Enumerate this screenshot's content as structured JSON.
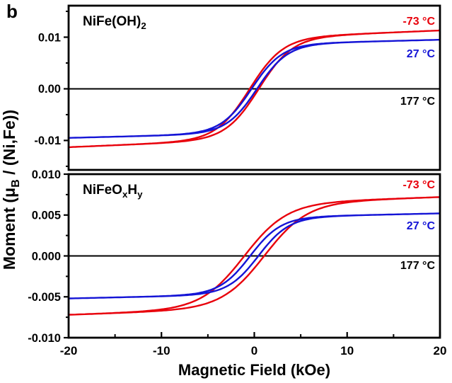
{
  "figure": {
    "panel_letter": "b",
    "background_color": "#ffffff",
    "axis_color": "#000000",
    "ylabel_segments": [
      {
        "t": "Moment ("
      },
      {
        "t": "μ"
      },
      {
        "t": "B",
        "sub": true
      },
      {
        "t": " / (Ni,Fe))"
      }
    ]
  },
  "chart_data": {
    "type": "line",
    "subtype": "magnetic-hysteresis-loops",
    "xlabel": "Magnetic Field (kOe)",
    "ylabel": "Moment (μB / (Ni,Fe))",
    "xlim": [
      -20,
      20
    ],
    "xticks": [
      {
        "v": -20,
        "label": "-20"
      },
      {
        "v": -10,
        "label": "-10"
      },
      {
        "v": 0,
        "label": "0"
      },
      {
        "v": 10,
        "label": "10"
      },
      {
        "v": 20,
        "label": "20"
      }
    ],
    "xminor": [
      -15,
      -5,
      5,
      15
    ],
    "grid": false,
    "legend_position": "inline-right-labels",
    "temperatures_C": [
      -73,
      27,
      177
    ],
    "colors": {
      "red": "#e8000b",
      "blue": "#1414d6",
      "black": "#000000"
    },
    "panels": [
      {
        "name": "NiFe(OH)2",
        "title_segments": [
          {
            "t": "NiFe(OH)"
          },
          {
            "t": "2",
            "sub": true
          }
        ],
        "ylim": [
          -0.0157,
          0.0161
        ],
        "yticks": [
          {
            "v": 0.01,
            "label": "0.01"
          },
          {
            "v": 0.0,
            "label": "0.00"
          },
          {
            "v": -0.01,
            "label": "-0.01"
          }
        ],
        "yminor": [
          0.015,
          0.005,
          -0.005,
          -0.015
        ],
        "show_xtick_labels": false,
        "series": [
          {
            "name": "-73 °C",
            "color": "#e8000b",
            "z": 1,
            "Ms": 0.0098,
            "Hc": 0.5,
            "w": 3.6,
            "chi": 7.5e-05,
            "moment_at_20kOe": 0.0113,
            "coercive_field_kOe": 0.5,
            "ascending_branch_points": [
              [
                -20,
                -0.0113
              ],
              [
                -10,
                -0.0105
              ],
              [
                -5,
                -0.0093
              ],
              [
                -2,
                -0.006
              ],
              [
                0,
                -0.0014
              ],
              [
                2,
                0.004
              ],
              [
                5,
                0.0087
              ],
              [
                10,
                0.0105
              ],
              [
                20,
                0.0113
              ]
            ],
            "note": "descending branch is mirror: M_desc(H) = -M_asc(-H)"
          },
          {
            "name": "27 °C",
            "color": "#1414d6",
            "z": 2,
            "Ms": 0.0086,
            "Hc": 0.3,
            "w": 3.3,
            "chi": 4.5e-05,
            "moment_at_20kOe": 0.0095,
            "coercive_field_kOe": 0.3,
            "ascending_branch_points": [
              [
                -20,
                -0.0095
              ],
              [
                -10,
                -0.009
              ],
              [
                -5,
                -0.0082
              ],
              [
                -2,
                -0.0053
              ],
              [
                0,
                -0.0008
              ],
              [
                2,
                0.0042
              ],
              [
                5,
                0.0079
              ],
              [
                10,
                0.009
              ],
              [
                20,
                0.0095
              ]
            ],
            "note": "descending branch is mirror: M_desc(H) = -M_asc(-H)"
          },
          {
            "name": "177 °C",
            "color": "#000000",
            "z": 0,
            "Ms": 0.0,
            "Hc": 0.0,
            "w": 1.0,
            "chi": 0.0,
            "moment_at_20kOe": 0.0,
            "coercive_field_kOe": 0.0,
            "ascending_branch_points": [
              [
                -20,
                0.0
              ],
              [
                0,
                0.0
              ],
              [
                20,
                0.0
              ]
            ],
            "note": "flat line coinciding with zero line"
          }
        ]
      },
      {
        "name": "NiFeOxHy",
        "title_segments": [
          {
            "t": "NiFeO"
          },
          {
            "t": "x",
            "sub": true
          },
          {
            "t": "H"
          },
          {
            "t": "y",
            "sub": true
          }
        ],
        "ylim": [
          -0.01,
          0.01
        ],
        "yticks": [
          {
            "v": 0.01,
            "label": "0.010"
          },
          {
            "v": 0.005,
            "label": "0.005"
          },
          {
            "v": 0.0,
            "label": "0.000"
          },
          {
            "v": -0.005,
            "label": "-0.005"
          },
          {
            "v": -0.01,
            "label": "-0.010"
          }
        ],
        "yminor": [
          0.0075,
          0.0025,
          -0.0025,
          -0.0075
        ],
        "show_xtick_labels": true,
        "series": [
          {
            "name": "-73 °C",
            "color": "#e8000b",
            "z": 1,
            "Ms": 0.0064,
            "Hc": 1.1,
            "w": 4.6,
            "chi": 4e-05,
            "moment_at_20kOe": 0.0072,
            "coercive_field_kOe": 1.1,
            "ascending_branch_points": [
              [
                -20,
                -0.0072
              ],
              [
                -10,
                -0.0067
              ],
              [
                -5,
                -0.0058
              ],
              [
                -2,
                -0.0039
              ],
              [
                0,
                -0.0015
              ],
              [
                2,
                0.0013
              ],
              [
                5,
                0.0046
              ],
              [
                10,
                0.0065
              ],
              [
                20,
                0.0072
              ]
            ],
            "note": "descending branch is mirror: M_desc(H) = -M_asc(-H)"
          },
          {
            "name": "27 °C",
            "color": "#1414d6",
            "z": 2,
            "Ms": 0.0047,
            "Hc": 0.45,
            "w": 3.3,
            "chi": 2.5e-05,
            "moment_at_20kOe": 0.0052,
            "coercive_field_kOe": 0.45,
            "ascending_branch_points": [
              [
                -20,
                -0.0052
              ],
              [
                -10,
                -0.0049
              ],
              [
                -5,
                -0.0045
              ],
              [
                -2,
                -0.003
              ],
              [
                0,
                -0.0006
              ],
              [
                2,
                0.0021
              ],
              [
                5,
                0.0043
              ],
              [
                10,
                0.0049
              ],
              [
                20,
                0.0052
              ]
            ],
            "note": "descending branch is mirror: M_desc(H) = -M_asc(-H)"
          },
          {
            "name": "177 °C",
            "color": "#000000",
            "z": 0,
            "Ms": 0.0,
            "Hc": 0.0,
            "w": 1.0,
            "chi": 0.0,
            "moment_at_20kOe": 0.0,
            "coercive_field_kOe": 0.0,
            "ascending_branch_points": [
              [
                -20,
                0.0
              ],
              [
                0,
                0.0
              ],
              [
                20,
                0.0
              ]
            ],
            "note": "flat line coinciding with zero line"
          }
        ]
      }
    ]
  }
}
